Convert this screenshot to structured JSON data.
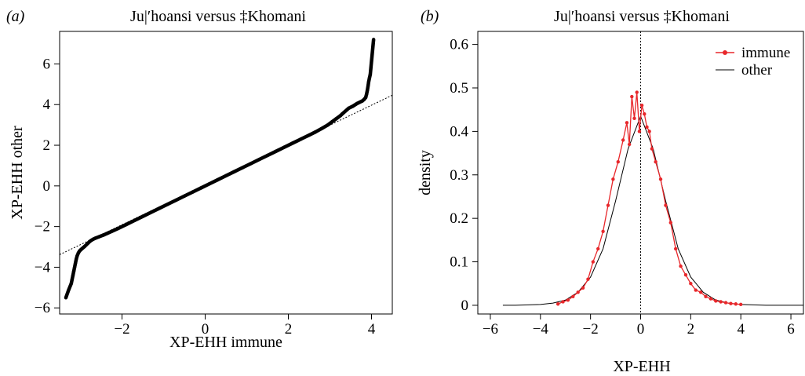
{
  "chart_data": [
    {
      "type": "scatter",
      "panel_label": "(a)",
      "title": "Ju|′hoansi versus ‡Khomani",
      "xlabel": "XP-EHH immune",
      "ylabel": "XP-EHH other",
      "xlim": [
        -3.5,
        4.5
      ],
      "ylim": [
        -6.3,
        7.6
      ],
      "xticks": [
        -2,
        0,
        2,
        4
      ],
      "xtick_labels": [
        "−2",
        "0",
        "2",
        "4"
      ],
      "yticks": [
        -6,
        -4,
        -2,
        0,
        2,
        4,
        6
      ],
      "ytick_labels": [
        "−6",
        "−4",
        "−2",
        "0",
        "2",
        "4",
        "6"
      ],
      "reference_line": {
        "slope": 0.98,
        "intercept": 0.05,
        "style": "dotted"
      },
      "x": [
        -3.35,
        -3.28,
        -3.22,
        -3.2,
        -3.18,
        -3.16,
        -3.14,
        -3.12,
        -3.1,
        -3.08,
        -3.05,
        -3.02,
        -2.98,
        -2.94,
        -2.9,
        -2.86,
        -2.82,
        -2.78,
        -2.74,
        -2.7,
        -2.65,
        -2.55,
        -2.45,
        -2.35,
        -2.25,
        -2.1,
        -1.9,
        -1.7,
        -1.5,
        -1.3,
        -1.1,
        -0.9,
        -0.7,
        -0.5,
        -0.3,
        -0.1,
        0.1,
        0.3,
        0.5,
        0.7,
        0.9,
        1.1,
        1.3,
        1.5,
        1.7,
        1.9,
        2.1,
        2.3,
        2.5,
        2.65,
        2.8,
        2.95,
        3.05,
        3.15,
        3.25,
        3.3,
        3.45,
        3.55,
        3.65,
        3.72,
        3.78,
        3.82,
        3.86,
        3.88,
        3.9,
        3.92,
        3.93,
        3.95,
        3.97,
        4.05
      ],
      "y": [
        -5.5,
        -5.1,
        -4.8,
        -4.6,
        -4.4,
        -4.2,
        -4.0,
        -3.8,
        -3.6,
        -3.45,
        -3.3,
        -3.2,
        -3.12,
        -3.05,
        -2.98,
        -2.9,
        -2.82,
        -2.74,
        -2.68,
        -2.63,
        -2.58,
        -2.5,
        -2.42,
        -2.33,
        -2.24,
        -2.1,
        -1.9,
        -1.7,
        -1.5,
        -1.3,
        -1.1,
        -0.9,
        -0.7,
        -0.5,
        -0.3,
        -0.1,
        0.1,
        0.3,
        0.5,
        0.7,
        0.9,
        1.1,
        1.3,
        1.5,
        1.7,
        1.9,
        2.1,
        2.3,
        2.5,
        2.65,
        2.82,
        3.0,
        3.15,
        3.3,
        3.45,
        3.55,
        3.82,
        3.92,
        4.05,
        4.12,
        4.18,
        4.25,
        4.35,
        4.5,
        4.7,
        4.95,
        5.1,
        5.3,
        5.48,
        7.2
      ]
    },
    {
      "type": "line",
      "panel_label": "(b)",
      "title": "Ju|′hoansi versus ‡Khomani",
      "xlabel": "XP-EHH",
      "ylabel": "density",
      "xlim": [
        -6.5,
        6.5
      ],
      "ylim": [
        -0.02,
        0.63
      ],
      "xticks": [
        -6,
        -4,
        -2,
        0,
        2,
        4,
        6
      ],
      "xtick_labels": [
        "−6",
        "−4",
        "−2",
        "0",
        "2",
        "4",
        "6"
      ],
      "yticks": [
        0,
        0.1,
        0.2,
        0.3,
        0.4,
        0.5,
        0.6
      ],
      "ytick_labels": [
        "0",
        "0.1",
        "0.2",
        "0.3",
        "0.4",
        "0.5",
        "0.6"
      ],
      "vline_x": 0,
      "legend": {
        "position": "top-right"
      },
      "series": [
        {
          "name": "immune",
          "color": "#e8272b",
          "marker": "point",
          "x": [
            -3.3,
            -3.1,
            -2.9,
            -2.7,
            -2.5,
            -2.3,
            -2.1,
            -1.9,
            -1.7,
            -1.5,
            -1.3,
            -1.1,
            -0.9,
            -0.7,
            -0.55,
            -0.45,
            -0.35,
            -0.25,
            -0.15,
            -0.05,
            0.05,
            0.15,
            0.25,
            0.35,
            0.45,
            0.6,
            0.8,
            1.0,
            1.2,
            1.4,
            1.6,
            1.8,
            2.0,
            2.2,
            2.4,
            2.6,
            2.8,
            3.0,
            3.2,
            3.4,
            3.6,
            3.8,
            4.0
          ],
          "values": [
            0.003,
            0.008,
            0.012,
            0.02,
            0.03,
            0.04,
            0.06,
            0.1,
            0.13,
            0.17,
            0.23,
            0.29,
            0.33,
            0.38,
            0.42,
            0.37,
            0.48,
            0.43,
            0.49,
            0.4,
            0.46,
            0.44,
            0.41,
            0.4,
            0.36,
            0.33,
            0.29,
            0.23,
            0.19,
            0.13,
            0.09,
            0.07,
            0.05,
            0.035,
            0.03,
            0.02,
            0.015,
            0.01,
            0.008,
            0.006,
            0.004,
            0.003,
            0.002
          ]
        },
        {
          "name": "other",
          "color": "#000000",
          "marker": "none",
          "x": [
            -5.5,
            -5.0,
            -4.5,
            -4.0,
            -3.5,
            -3.0,
            -2.5,
            -2.0,
            -1.5,
            -1.0,
            -0.5,
            0.0,
            0.5,
            1.0,
            1.5,
            2.0,
            2.5,
            3.0,
            3.5,
            4.0,
            4.5,
            5.0,
            5.5,
            6.0,
            6.5
          ],
          "values": [
            0.0,
            0.0,
            0.001,
            0.002,
            0.005,
            0.012,
            0.03,
            0.065,
            0.13,
            0.24,
            0.36,
            0.435,
            0.36,
            0.24,
            0.13,
            0.065,
            0.03,
            0.012,
            0.005,
            0.002,
            0.001,
            0.0,
            0.0,
            0.0,
            0.0
          ]
        }
      ]
    }
  ]
}
